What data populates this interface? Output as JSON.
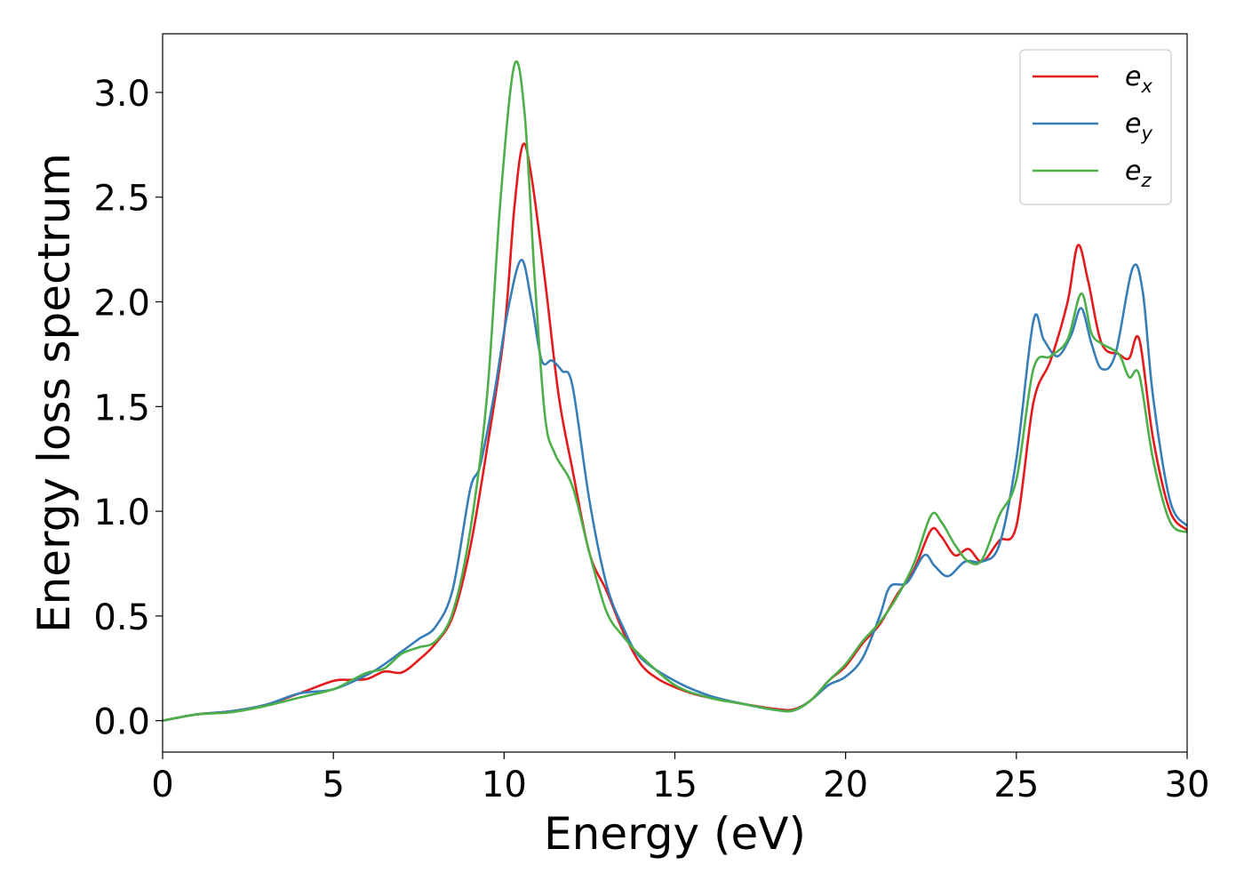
{
  "chart_data": {
    "type": "line",
    "title": "",
    "xlabel": "Energy (eV)",
    "ylabel": "Energy loss spectrum",
    "xlim": [
      0,
      30
    ],
    "ylim": [
      -0.15,
      3.28
    ],
    "xticks": [
      0,
      5,
      10,
      15,
      20,
      25,
      30
    ],
    "xtick_labels": [
      "0",
      "5",
      "10",
      "15",
      "20",
      "25",
      "30"
    ],
    "yticks": [
      0.0,
      0.5,
      1.0,
      1.5,
      2.0,
      2.5,
      3.0
    ],
    "ytick_labels": [
      "0.0",
      "0.5",
      "1.0",
      "1.5",
      "2.0",
      "2.5",
      "3.0"
    ],
    "grid": false,
    "legend_position": "top-right",
    "series": [
      {
        "name": "e",
        "subscript": "x",
        "color": "#e41a1c",
        "points": [
          [
            0,
            0
          ],
          [
            1,
            0.03
          ],
          [
            2,
            0.045
          ],
          [
            3,
            0.075
          ],
          [
            4,
            0.13
          ],
          [
            5,
            0.19
          ],
          [
            5.5,
            0.195
          ],
          [
            6,
            0.2
          ],
          [
            6.5,
            0.235
          ],
          [
            7,
            0.23
          ],
          [
            7.5,
            0.29
          ],
          [
            8,
            0.37
          ],
          [
            8.5,
            0.5
          ],
          [
            9,
            0.82
          ],
          [
            9.5,
            1.3
          ],
          [
            10,
            1.85
          ],
          [
            10.3,
            2.45
          ],
          [
            10.55,
            2.75
          ],
          [
            10.8,
            2.6
          ],
          [
            11.2,
            2.1
          ],
          [
            11.6,
            1.55
          ],
          [
            12,
            1.2
          ],
          [
            12.5,
            0.8
          ],
          [
            13,
            0.62
          ],
          [
            13.5,
            0.42
          ],
          [
            14,
            0.27
          ],
          [
            14.5,
            0.2
          ],
          [
            15,
            0.16
          ],
          [
            15.5,
            0.13
          ],
          [
            16,
            0.11
          ],
          [
            17,
            0.08
          ],
          [
            18,
            0.055
          ],
          [
            18.5,
            0.055
          ],
          [
            19,
            0.1
          ],
          [
            19.5,
            0.19
          ],
          [
            20,
            0.26
          ],
          [
            20.5,
            0.37
          ],
          [
            21,
            0.46
          ],
          [
            21.5,
            0.6
          ],
          [
            22,
            0.72
          ],
          [
            22.5,
            0.91
          ],
          [
            22.8,
            0.88
          ],
          [
            23.2,
            0.79
          ],
          [
            23.6,
            0.82
          ],
          [
            24,
            0.76
          ],
          [
            24.5,
            0.86
          ],
          [
            25,
            0.93
          ],
          [
            25.5,
            1.52
          ],
          [
            26,
            1.72
          ],
          [
            26.5,
            2.0
          ],
          [
            26.8,
            2.27
          ],
          [
            27.1,
            2.1
          ],
          [
            27.5,
            1.8
          ],
          [
            28,
            1.75
          ],
          [
            28.3,
            1.73
          ],
          [
            28.6,
            1.82
          ],
          [
            29,
            1.35
          ],
          [
            29.5,
            1.0
          ],
          [
            30,
            0.91
          ]
        ]
      },
      {
        "name": "e",
        "subscript": "y",
        "color": "#377eb8",
        "points": [
          [
            0,
            0
          ],
          [
            1,
            0.03
          ],
          [
            2,
            0.045
          ],
          [
            3,
            0.075
          ],
          [
            4,
            0.13
          ],
          [
            5,
            0.15
          ],
          [
            6,
            0.22
          ],
          [
            6.5,
            0.27
          ],
          [
            7,
            0.33
          ],
          [
            7.5,
            0.39
          ],
          [
            8,
            0.45
          ],
          [
            8.5,
            0.63
          ],
          [
            9,
            1.1
          ],
          [
            9.3,
            1.22
          ],
          [
            9.7,
            1.55
          ],
          [
            10.1,
            1.95
          ],
          [
            10.5,
            2.2
          ],
          [
            10.8,
            2.0
          ],
          [
            11.1,
            1.72
          ],
          [
            11.4,
            1.72
          ],
          [
            11.7,
            1.67
          ],
          [
            12,
            1.6
          ],
          [
            12.5,
            1.05
          ],
          [
            13,
            0.65
          ],
          [
            13.5,
            0.44
          ],
          [
            14,
            0.3
          ],
          [
            15,
            0.19
          ],
          [
            16,
            0.12
          ],
          [
            17,
            0.08
          ],
          [
            18,
            0.05
          ],
          [
            18.5,
            0.05
          ],
          [
            19,
            0.1
          ],
          [
            19.5,
            0.17
          ],
          [
            20,
            0.21
          ],
          [
            20.5,
            0.3
          ],
          [
            21,
            0.5
          ],
          [
            21.3,
            0.64
          ],
          [
            21.8,
            0.66
          ],
          [
            22.3,
            0.79
          ],
          [
            22.6,
            0.74
          ],
          [
            23,
            0.69
          ],
          [
            23.5,
            0.76
          ],
          [
            24,
            0.76
          ],
          [
            24.5,
            0.84
          ],
          [
            25,
            1.25
          ],
          [
            25.5,
            1.91
          ],
          [
            25.8,
            1.82
          ],
          [
            26.2,
            1.74
          ],
          [
            26.6,
            1.84
          ],
          [
            26.9,
            1.97
          ],
          [
            27.2,
            1.8
          ],
          [
            27.5,
            1.68
          ],
          [
            27.9,
            1.75
          ],
          [
            28.4,
            2.16
          ],
          [
            28.7,
            2.05
          ],
          [
            29,
            1.55
          ],
          [
            29.5,
            1.05
          ],
          [
            30,
            0.93
          ]
        ]
      },
      {
        "name": "e",
        "subscript": "z",
        "color": "#4daf4a",
        "points": [
          [
            0,
            0
          ],
          [
            1,
            0.03
          ],
          [
            2,
            0.04
          ],
          [
            3,
            0.07
          ],
          [
            4,
            0.11
          ],
          [
            5,
            0.15
          ],
          [
            5.5,
            0.19
          ],
          [
            6,
            0.23
          ],
          [
            6.5,
            0.25
          ],
          [
            7,
            0.32
          ],
          [
            7.5,
            0.35
          ],
          [
            8,
            0.38
          ],
          [
            8.5,
            0.52
          ],
          [
            9,
            0.9
          ],
          [
            9.5,
            1.55
          ],
          [
            9.9,
            2.5
          ],
          [
            10.3,
            3.13
          ],
          [
            10.6,
            2.9
          ],
          [
            10.9,
            2.1
          ],
          [
            11.2,
            1.45
          ],
          [
            11.5,
            1.27
          ],
          [
            12,
            1.12
          ],
          [
            12.5,
            0.8
          ],
          [
            13,
            0.52
          ],
          [
            13.5,
            0.4
          ],
          [
            14,
            0.31
          ],
          [
            15,
            0.17
          ],
          [
            16,
            0.11
          ],
          [
            17,
            0.08
          ],
          [
            18,
            0.05
          ],
          [
            18.5,
            0.05
          ],
          [
            19,
            0.1
          ],
          [
            19.5,
            0.19
          ],
          [
            20,
            0.27
          ],
          [
            20.5,
            0.38
          ],
          [
            21,
            0.47
          ],
          [
            21.5,
            0.59
          ],
          [
            22,
            0.75
          ],
          [
            22.5,
            0.98
          ],
          [
            22.8,
            0.95
          ],
          [
            23.2,
            0.84
          ],
          [
            23.6,
            0.76
          ],
          [
            24,
            0.77
          ],
          [
            24.5,
            0.98
          ],
          [
            25,
            1.15
          ],
          [
            25.5,
            1.68
          ],
          [
            26,
            1.74
          ],
          [
            26.5,
            1.82
          ],
          [
            26.9,
            2.04
          ],
          [
            27.2,
            1.85
          ],
          [
            27.5,
            1.8
          ],
          [
            28,
            1.75
          ],
          [
            28.3,
            1.64
          ],
          [
            28.6,
            1.65
          ],
          [
            29,
            1.25
          ],
          [
            29.5,
            0.95
          ],
          [
            30,
            0.9
          ]
        ]
      }
    ]
  }
}
